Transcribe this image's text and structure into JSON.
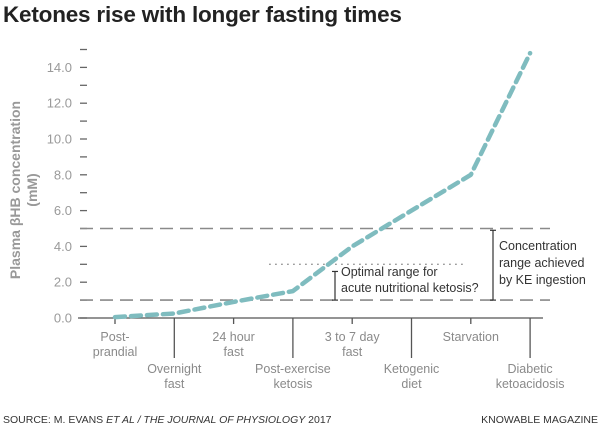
{
  "title": "Ketones rise with longer fasting times",
  "footer": {
    "source_prefix": "SOURCE: M. EVANS ",
    "source_etal": "ET AL / THE JOURNAL OF PHYSIOLOGY",
    "source_year": " 2017",
    "publisher": "KNOWABLE MAGAZINE"
  },
  "colors": {
    "line": "#7fbcbf",
    "reference_dash": "#8a8a8a",
    "axis": "#555555",
    "text_gray": "#9a9a9a"
  },
  "chart_data": {
    "type": "line",
    "title": "Ketones rise with longer fasting times",
    "xlabel": "",
    "ylabel_lines": [
      "Plasma βHB concentration",
      "(mM)"
    ],
    "ylim": [
      0,
      15
    ],
    "yticks": [
      0,
      2,
      4,
      6,
      8,
      10,
      12,
      14
    ],
    "ytick_labels": [
      "0.0",
      "2.0",
      "4.0",
      "6.0",
      "8.0",
      "10.0",
      "12.0",
      "14.0"
    ],
    "minor_yticks": [
      1,
      3,
      5,
      7,
      9,
      11,
      13,
      15
    ],
    "grid": false,
    "legend": "none",
    "categories": [
      {
        "lines": [
          "Post-",
          "prandial"
        ],
        "position": "upper"
      },
      {
        "lines": [
          "Overnight",
          "fast"
        ],
        "position": "lower"
      },
      {
        "lines": [
          "24 hour",
          "fast"
        ],
        "position": "upper"
      },
      {
        "lines": [
          "Post-exercise",
          "ketosis"
        ],
        "position": "lower"
      },
      {
        "lines": [
          "3 to 7 day",
          "fast"
        ],
        "position": "upper"
      },
      {
        "lines": [
          "Ketogenic",
          "diet"
        ],
        "position": "lower"
      },
      {
        "lines": [
          "Starvation"
        ],
        "position": "upper"
      },
      {
        "lines": [
          "Diabetic",
          "ketoacidosis"
        ],
        "position": "lower"
      }
    ],
    "series": [
      {
        "name": "Plasma βHB",
        "style": "dashed",
        "values": [
          0.05,
          0.25,
          0.9,
          1.5,
          4.0,
          6.0,
          8.0,
          14.8
        ]
      }
    ],
    "reference_lines": [
      {
        "y": 1.0,
        "style": "dashed",
        "name": "KE range low"
      },
      {
        "y": 5.0,
        "style": "dashed",
        "name": "KE range high"
      },
      {
        "y": 3.0,
        "style": "dotted",
        "name": "optimal ketosis upper",
        "x_start_category": 2.6,
        "x_end_category": 5.9
      }
    ],
    "annotations": [
      {
        "name": "optimal-range",
        "range": [
          1.0,
          3.0
        ],
        "lines": [
          "Optimal range for",
          "acute nutritional ketosis?"
        ]
      },
      {
        "name": "ke-range",
        "range": [
          1.0,
          5.0
        ],
        "lines": [
          "Concentration",
          "range achieved",
          "by KE ingestion"
        ]
      }
    ]
  }
}
